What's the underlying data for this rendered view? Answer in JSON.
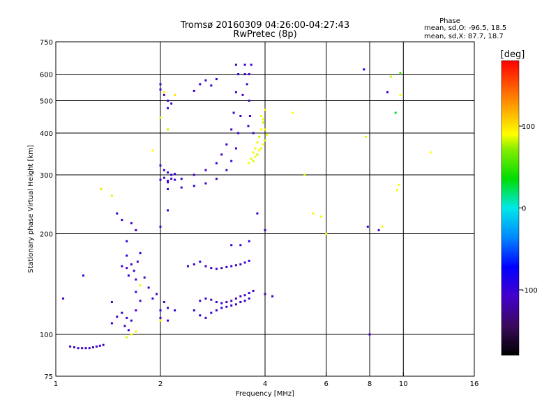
{
  "chart_data": {
    "type": "scatter",
    "title": "Tromsø 20160309 04:26:00-04:27:43",
    "subtitle": "RwPretec (8p)",
    "xlabel": "Frequency [MHz]",
    "ylabel": "Stationary phase Virtual Height [km]",
    "x_scale": "log2",
    "y_scale": "log",
    "xlim": [
      1,
      16
    ],
    "ylim": [
      75,
      750
    ],
    "x_ticks": [
      1,
      2,
      4,
      6,
      8,
      10,
      16
    ],
    "x_tick_labels": [
      "1",
      "2",
      "4",
      "6",
      "8",
      "10",
      "16"
    ],
    "x_gridlines": [
      2,
      4,
      6,
      8,
      10
    ],
    "y_ticks": [
      75,
      100,
      200,
      300,
      400,
      500,
      600,
      750
    ],
    "y_tick_labels": [
      "75",
      "100",
      "200",
      "300",
      "400",
      "500",
      "600",
      "750"
    ],
    "y_gridlines": [
      100,
      200,
      300,
      400,
      500,
      600
    ],
    "grid": true,
    "stats": {
      "title": "Phase",
      "line_o": "mean, sd,O: -96.5, 18.5",
      "line_x": "mean, sd,X:  87.7, 18.7"
    },
    "colorbar": {
      "label": "[deg]",
      "range": [
        -180,
        180
      ],
      "ticks": [
        100,
        0,
        -100
      ],
      "tick_labels": [
        "100",
        "0",
        "-100"
      ],
      "colormap": "rainbow"
    },
    "series": [
      {
        "points": [
          [
            1.1,
            92,
            -105
          ],
          [
            1.13,
            91.5,
            -110
          ],
          [
            1.16,
            91,
            -100
          ],
          [
            1.19,
            91,
            -112
          ],
          [
            1.22,
            91,
            -98
          ],
          [
            1.25,
            91,
            -108
          ],
          [
            1.28,
            91.5,
            -104
          ],
          [
            1.31,
            92,
            -110
          ],
          [
            1.34,
            92.5,
            -96
          ],
          [
            1.37,
            93,
            -110
          ],
          [
            1.45,
            108,
            -100
          ],
          [
            1.5,
            113,
            -110
          ],
          [
            1.55,
            116,
            -95
          ],
          [
            1.6,
            112,
            -112
          ],
          [
            1.65,
            110,
            -102
          ],
          [
            1.7,
            118,
            -108
          ],
          [
            1.58,
            106,
            -115
          ],
          [
            1.62,
            103,
            -100
          ],
          [
            1.55,
            160,
            -102
          ],
          [
            1.6,
            158,
            -110
          ],
          [
            1.62,
            150,
            -98
          ],
          [
            1.65,
            162,
            -108
          ],
          [
            1.68,
            155,
            -104
          ],
          [
            1.7,
            146,
            -112
          ],
          [
            1.75,
            175,
            -100
          ],
          [
            1.72,
            165,
            -106
          ],
          [
            1.6,
            172,
            -95
          ],
          [
            1.8,
            148,
            -110
          ],
          [
            1.85,
            138,
            -104
          ],
          [
            1.9,
            128,
            -100
          ],
          [
            1.75,
            126,
            -108
          ],
          [
            1.95,
            132,
            -112
          ],
          [
            1.7,
            134,
            -102
          ],
          [
            2.0,
            118,
            -104
          ],
          [
            2.1,
            120,
            -110
          ],
          [
            2.2,
            118,
            -96
          ],
          [
            2.0,
            112,
            -108
          ],
          [
            2.1,
            110,
            -102
          ],
          [
            2.05,
            125,
            -112
          ],
          [
            2.5,
            118,
            -105
          ],
          [
            2.6,
            114,
            -100
          ],
          [
            2.7,
            112,
            -110
          ],
          [
            2.8,
            116,
            -104
          ],
          [
            2.9,
            118,
            -112
          ],
          [
            3.0,
            120,
            -98
          ],
          [
            3.1,
            121,
            -108
          ],
          [
            3.2,
            122,
            -115
          ],
          [
            3.3,
            123,
            -104
          ],
          [
            3.4,
            125,
            -110
          ],
          [
            3.5,
            126,
            -100
          ],
          [
            3.6,
            128,
            -108
          ],
          [
            2.6,
            126,
            -108
          ],
          [
            2.7,
            128,
            -100
          ],
          [
            2.8,
            127,
            -112
          ],
          [
            2.9,
            125,
            -104
          ],
          [
            3.0,
            124,
            -98
          ],
          [
            3.1,
            125,
            -110
          ],
          [
            3.2,
            126,
            -102
          ],
          [
            3.3,
            128,
            -108
          ],
          [
            3.4,
            130,
            -112
          ],
          [
            3.5,
            131,
            -104
          ],
          [
            3.6,
            133,
            -98
          ],
          [
            3.7,
            135,
            -110
          ],
          [
            2.4,
            160,
            -104
          ],
          [
            2.5,
            162,
            -110
          ],
          [
            2.6,
            165,
            -98
          ],
          [
            2.7,
            160,
            -112
          ],
          [
            2.8,
            158,
            -104
          ],
          [
            2.9,
            157,
            -100
          ],
          [
            3.0,
            158,
            -110
          ],
          [
            3.1,
            159,
            -104
          ],
          [
            3.2,
            160,
            -108
          ],
          [
            3.3,
            161,
            -100
          ],
          [
            3.4,
            162,
            -112
          ],
          [
            3.5,
            164,
            -104
          ],
          [
            3.6,
            166,
            -96
          ],
          [
            2.0,
            290,
            -102
          ],
          [
            2.05,
            294,
            -110
          ],
          [
            2.1,
            288,
            -98
          ],
          [
            2.15,
            292,
            -108
          ],
          [
            2.2,
            290,
            -104
          ],
          [
            2.0,
            320,
            -110
          ],
          [
            2.05,
            310,
            -100
          ],
          [
            2.1,
            305,
            -112
          ],
          [
            2.15,
            300,
            -104
          ],
          [
            2.2,
            302,
            -98
          ],
          [
            2.1,
            272,
            -104
          ],
          [
            2.3,
            275,
            -110
          ],
          [
            2.5,
            278,
            -100
          ],
          [
            2.7,
            283,
            -108
          ],
          [
            2.9,
            292,
            -112
          ],
          [
            3.1,
            310,
            -104
          ],
          [
            3.2,
            330,
            -100
          ],
          [
            3.3,
            360,
            -110
          ],
          [
            3.35,
            400,
            -104
          ],
          [
            3.4,
            450,
            -108
          ],
          [
            3.45,
            520,
            -112
          ],
          [
            3.5,
            600,
            -100
          ],
          [
            3.5,
            640,
            -104
          ],
          [
            2.1,
            285,
            -108
          ],
          [
            2.3,
            292,
            -100
          ],
          [
            2.5,
            300,
            -112
          ],
          [
            2.7,
            310,
            -104
          ],
          [
            2.9,
            325,
            -98
          ],
          [
            3.0,
            345,
            -110
          ],
          [
            3.1,
            370,
            -104
          ],
          [
            3.2,
            410,
            -108
          ],
          [
            3.25,
            460,
            -100
          ],
          [
            3.3,
            530,
            -112
          ],
          [
            3.35,
            600,
            -104
          ],
          [
            3.3,
            640,
            -110
          ],
          [
            3.55,
            560,
            -104
          ],
          [
            3.6,
            500,
            -110
          ],
          [
            3.62,
            450,
            -100
          ],
          [
            3.6,
            600,
            -108
          ],
          [
            3.65,
            640,
            -112
          ],
          [
            3.58,
            420,
            -104
          ],
          [
            2.0,
            540,
            -104
          ],
          [
            2.05,
            520,
            -110
          ],
          [
            2.1,
            500,
            -100
          ],
          [
            2.15,
            490,
            -108
          ],
          [
            2.0,
            560,
            -112
          ],
          [
            2.1,
            475,
            -104
          ],
          [
            2.6,
            560,
            -100
          ],
          [
            2.7,
            575,
            -108
          ],
          [
            2.8,
            555,
            -104
          ],
          [
            2.5,
            535,
            -110
          ],
          [
            2.9,
            580,
            -98
          ],
          [
            1.05,
            128,
            -110
          ],
          [
            1.2,
            150,
            -104
          ],
          [
            1.45,
            125,
            -108
          ],
          [
            1.5,
            230,
            -104
          ],
          [
            1.55,
            220,
            -110
          ],
          [
            1.6,
            190,
            -100
          ],
          [
            1.65,
            215,
            -108
          ],
          [
            1.7,
            205,
            -112
          ],
          [
            2.1,
            235,
            -104
          ],
          [
            2.0,
            210,
            -108
          ],
          [
            3.7,
            400,
            -100
          ],
          [
            3.8,
            230,
            -104
          ],
          [
            4.0,
            132,
            -110
          ],
          [
            4.0,
            205,
            -108
          ],
          [
            4.2,
            130,
            -104
          ],
          [
            7.9,
            210,
            -100
          ],
          [
            8.5,
            205,
            -110
          ],
          [
            9.0,
            530,
            -104
          ],
          [
            7.7,
            620,
            -98
          ],
          [
            8.0,
            100,
            -112
          ],
          [
            3.2,
            185,
            -104
          ],
          [
            3.4,
            185,
            -110
          ],
          [
            3.6,
            190,
            -100
          ]
        ]
      },
      {
        "points": [
          [
            3.7,
            330,
            85
          ],
          [
            3.75,
            340,
            90
          ],
          [
            3.8,
            345,
            80
          ],
          [
            3.85,
            355,
            95
          ],
          [
            3.9,
            360,
            88
          ],
          [
            3.95,
            370,
            92
          ],
          [
            4.0,
            380,
            85
          ],
          [
            4.05,
            395,
            90
          ],
          [
            4.0,
            410,
            95
          ],
          [
            3.95,
            430,
            80
          ],
          [
            3.9,
            450,
            88
          ],
          [
            4.0,
            470,
            92
          ],
          [
            3.6,
            325,
            90
          ],
          [
            3.65,
            335,
            85
          ],
          [
            3.7,
            350,
            92
          ],
          [
            3.75,
            360,
            88
          ],
          [
            3.8,
            375,
            95
          ],
          [
            3.85,
            390,
            82
          ],
          [
            3.9,
            410,
            90
          ],
          [
            3.95,
            440,
            88
          ],
          [
            1.65,
            100,
            90
          ],
          [
            1.6,
            98,
            85
          ],
          [
            1.7,
            102,
            95
          ],
          [
            1.75,
            140,
            88
          ],
          [
            2.0,
            110,
            92
          ],
          [
            1.35,
            272,
            100
          ],
          [
            1.45,
            260,
            85
          ],
          [
            1.9,
            355,
            90
          ],
          [
            2.1,
            410,
            82
          ],
          [
            2.2,
            520,
            100
          ],
          [
            2.05,
            530,
            92
          ],
          [
            2.0,
            445,
            88
          ],
          [
            4.8,
            460,
            90
          ],
          [
            5.2,
            300,
            85
          ],
          [
            5.5,
            230,
            95
          ],
          [
            5.8,
            225,
            88
          ],
          [
            6.0,
            200,
            92
          ],
          [
            9.2,
            590,
            80
          ],
          [
            9.8,
            520,
            90
          ],
          [
            9.7,
            280,
            88
          ],
          [
            9.6,
            270,
            95
          ],
          [
            12.0,
            350,
            90
          ],
          [
            9.8,
            605,
            50
          ],
          [
            8.7,
            210,
            92
          ],
          [
            7.8,
            390,
            85
          ],
          [
            9.5,
            460,
            30
          ]
        ]
      }
    ]
  }
}
